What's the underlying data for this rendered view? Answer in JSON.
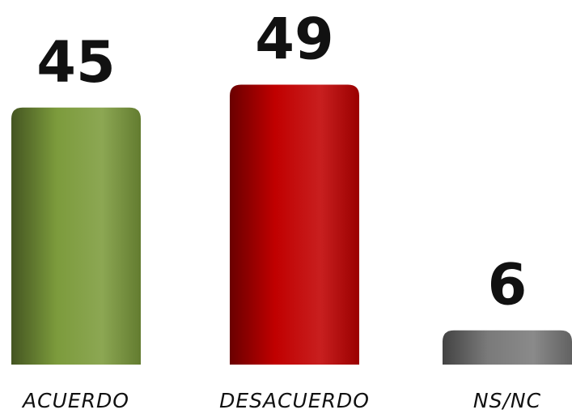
{
  "chart_data": {
    "type": "bar",
    "categories": [
      "ACUERDO",
      "DESACUERDO",
      "NS/NC"
    ],
    "values": [
      45,
      49,
      6
    ],
    "colors": [
      "#7c9b3c",
      "#c00000",
      "#7a7a7a"
    ]
  }
}
